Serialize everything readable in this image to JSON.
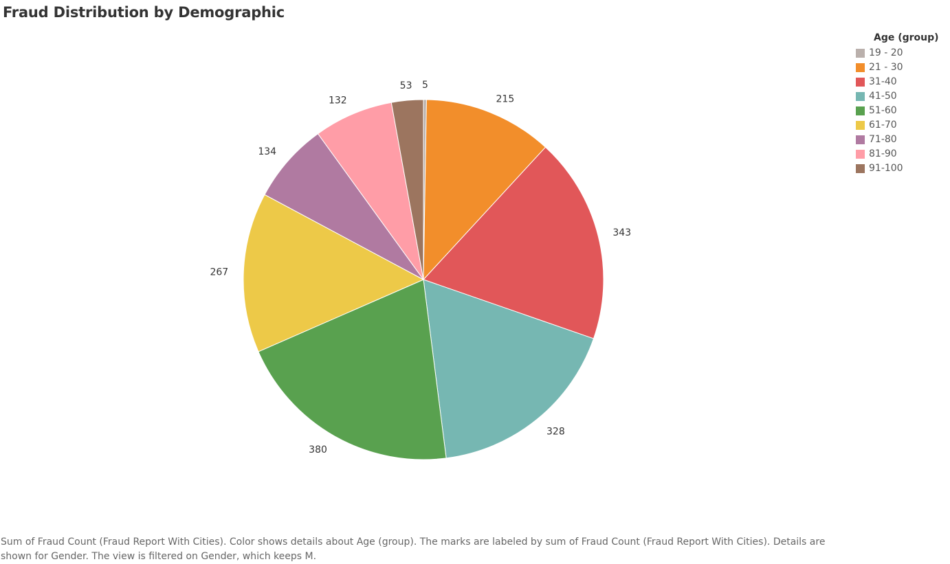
{
  "title": "Fraud Distribution by Demographic",
  "chart_data": {
    "type": "pie",
    "title": "Fraud Distribution by Demographic",
    "legend_title": "Age (group)",
    "legend_placement": "top-right",
    "categories": [
      "19 - 20",
      "21 - 30",
      "31-40",
      "41-50",
      "51-60",
      "61-70",
      "71-80",
      "81-90",
      "91-100"
    ],
    "values": [
      5,
      215,
      343,
      328,
      380,
      267,
      134,
      132,
      53
    ],
    "colors": [
      "#BAB0AC",
      "#F28E2B",
      "#E15759",
      "#76B7B2",
      "#59A14F",
      "#EDC948",
      "#B07AA1",
      "#FF9DA7",
      "#9C755F"
    ]
  },
  "footer": "Sum of Fraud Count (Fraud Report With Cities).  Color shows details about Age (group).  The marks are labeled by sum of Fraud Count (Fraud Report With Cities).  Details are shown for Gender. The view is filtered on Gender, which keeps M."
}
